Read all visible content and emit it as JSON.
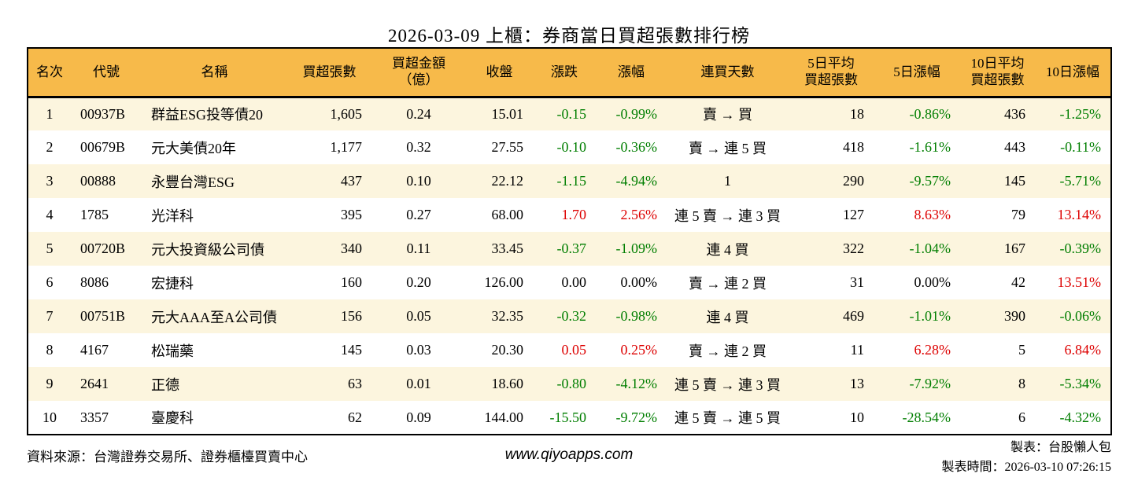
{
  "title": "2026-03-09 上櫃：券商當日買超張數排行榜",
  "colors": {
    "header_bg": "#F7BA4A",
    "row_odd_bg": "#FCF5DE",
    "up_red": "#DD0000",
    "down_green": "#007E00",
    "border_black": "#000000"
  },
  "footer": {
    "source": "資料來源：台灣證券交易所、證券櫃檯買賣中心",
    "website": "www.qiyoapps.com",
    "maker": "製表：台股懶人包",
    "timestamp": "製表時間：2026-03-10 07:26:15"
  },
  "chart_data": {
    "type": "table",
    "title": "2026-03-09 上櫃：券商當日買超張數排行榜",
    "columns": [
      {
        "id": "rank",
        "label": "名次",
        "align": "center",
        "width": 55
      },
      {
        "id": "code",
        "label": "代號",
        "align": "left",
        "width": 90
      },
      {
        "id": "name",
        "label": "名稱",
        "align": "left",
        "width": 185
      },
      {
        "id": "net-buy",
        "label": "買超張數",
        "align": "right",
        "width": 107
      },
      {
        "id": "amount",
        "label": "買超金額\n（億）",
        "align": "center",
        "width": 120
      },
      {
        "id": "close",
        "label": "收盤",
        "align": "right",
        "width": 85
      },
      {
        "id": "change",
        "label": "漲跌",
        "align": "right",
        "width": 80
      },
      {
        "id": "change-pct",
        "label": "漲幅",
        "align": "right",
        "width": 90
      },
      {
        "id": "streak",
        "label": "連買天數",
        "align": "center",
        "width": 155
      },
      {
        "id": "avg5",
        "label": "5日平均\n買超張數",
        "align": "right",
        "width": 108
      },
      {
        "id": "pct5",
        "label": "5日漲幅",
        "align": "right",
        "width": 110
      },
      {
        "id": "avg10",
        "label": "10日平均\n買超張數",
        "align": "right",
        "width": 95
      },
      {
        "id": "pct10",
        "label": "10日漲幅",
        "align": "right",
        "width": 97
      }
    ],
    "trend_cell_indexes": [
      6,
      7,
      10,
      12
    ],
    "rows": [
      {
        "cells": [
          "1",
          "00937B",
          "群益ESG投等債20",
          "1,605",
          "0.24",
          "15.01",
          "-0.15",
          "-0.99%",
          "賣 → 買",
          "18",
          "-0.86%",
          "436",
          "-1.25%"
        ],
        "trend": [
          "down",
          "down",
          "down",
          "down"
        ]
      },
      {
        "cells": [
          "2",
          "00679B",
          "元大美債20年",
          "1,177",
          "0.32",
          "27.55",
          "-0.10",
          "-0.36%",
          "賣 → 連 5 買",
          "418",
          "-1.61%",
          "443",
          "-0.11%"
        ],
        "trend": [
          "down",
          "down",
          "down",
          "down"
        ]
      },
      {
        "cells": [
          "3",
          "00888",
          "永豐台灣ESG",
          "437",
          "0.10",
          "22.12",
          "-1.15",
          "-4.94%",
          "1",
          "290",
          "-9.57%",
          "145",
          "-5.71%"
        ],
        "trend": [
          "down",
          "down",
          "down",
          "down"
        ]
      },
      {
        "cells": [
          "4",
          "1785",
          "光洋科",
          "395",
          "0.27",
          "68.00",
          "1.70",
          "2.56%",
          "連 5 賣 → 連 3 買",
          "127",
          "8.63%",
          "79",
          "13.14%"
        ],
        "trend": [
          "up",
          "up",
          "up",
          "up"
        ]
      },
      {
        "cells": [
          "5",
          "00720B",
          "元大投資級公司債",
          "340",
          "0.11",
          "33.45",
          "-0.37",
          "-1.09%",
          "連 4 買",
          "322",
          "-1.04%",
          "167",
          "-0.39%"
        ],
        "trend": [
          "down",
          "down",
          "down",
          "down"
        ]
      },
      {
        "cells": [
          "6",
          "8086",
          "宏捷科",
          "160",
          "0.20",
          "126.00",
          "0.00",
          "0.00%",
          "賣 → 連 2 買",
          "31",
          "0.00%",
          "42",
          "13.51%"
        ],
        "trend": [
          "flat",
          "flat",
          "flat",
          "up"
        ]
      },
      {
        "cells": [
          "7",
          "00751B",
          "元大AAA至A公司債",
          "156",
          "0.05",
          "32.35",
          "-0.32",
          "-0.98%",
          "連 4 買",
          "469",
          "-1.01%",
          "390",
          "-0.06%"
        ],
        "trend": [
          "down",
          "down",
          "down",
          "down"
        ]
      },
      {
        "cells": [
          "8",
          "4167",
          "松瑞藥",
          "145",
          "0.03",
          "20.30",
          "0.05",
          "0.25%",
          "賣 → 連 2 買",
          "11",
          "6.28%",
          "5",
          "6.84%"
        ],
        "trend": [
          "up",
          "up",
          "up",
          "up"
        ]
      },
      {
        "cells": [
          "9",
          "2641",
          "正德",
          "63",
          "0.01",
          "18.60",
          "-0.80",
          "-4.12%",
          "連 5 賣 → 連 3 買",
          "13",
          "-7.92%",
          "8",
          "-5.34%"
        ],
        "trend": [
          "down",
          "down",
          "down",
          "down"
        ]
      },
      {
        "cells": [
          "10",
          "3357",
          "臺慶科",
          "62",
          "0.09",
          "144.00",
          "-15.50",
          "-9.72%",
          "連 5 賣 → 連 5 買",
          "10",
          "-28.54%",
          "6",
          "-4.32%"
        ],
        "trend": [
          "down",
          "down",
          "down",
          "down"
        ]
      }
    ]
  }
}
